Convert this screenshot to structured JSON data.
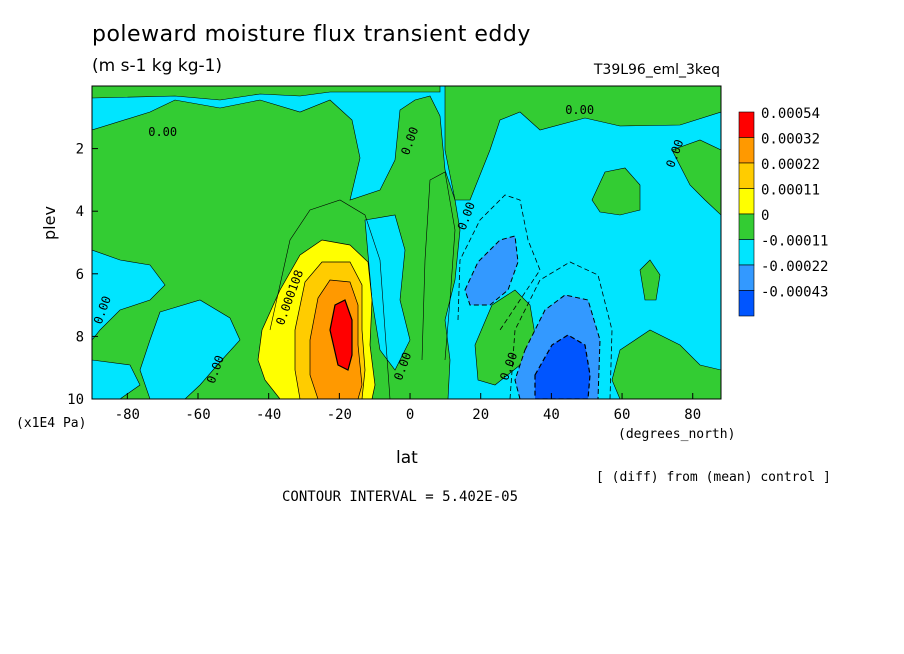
{
  "title": "poleward moisture flux transient eddy",
  "units": "(m s-1 kg kg-1)",
  "run_label": "T39L96_eml_3keq",
  "note": "[ (diff) from (mean) control ]",
  "contour_interval": "CONTOUR INTERVAL = 5.402E-05",
  "chart_data": {
    "type": "heatmap",
    "title": "poleward moisture flux transient eddy",
    "xlabel": "lat",
    "x_units": "(degrees_north)",
    "ylabel": "plev",
    "y_units": "(x1E4 Pa)",
    "xlim": [
      -90,
      88
    ],
    "ylim": [
      10,
      0
    ],
    "x_ticks": [
      "-80",
      "-60",
      "-40",
      "-20",
      "0",
      "20",
      "40",
      "60",
      "80"
    ],
    "y_ticks": [
      "2",
      "4",
      "6",
      "8",
      "10"
    ],
    "legend": {
      "position": "right",
      "levels": [
        {
          "label": "0.00054",
          "color": "#ff0000"
        },
        {
          "label": "0.00032",
          "color": "#ff9900"
        },
        {
          "label": "0.00022",
          "color": "#ffcc00"
        },
        {
          "label": "0.00011",
          "color": "#ffff00"
        },
        {
          "label": "0",
          "color": "#33cc33"
        },
        {
          "label": "-0.00011",
          "color": "#00e5ff"
        },
        {
          "label": "-0.00022",
          "color": "#3399ff"
        },
        {
          "label": "-0.00043",
          "color": "#0055ff"
        }
      ]
    },
    "contour_labels": [
      {
        "text": "0.00",
        "lat": -70,
        "plev": 1.6
      },
      {
        "text": "0.00",
        "lat": 1,
        "plev": 1.8
      },
      {
        "text": "0.00",
        "lat": 48,
        "plev": 0.9
      },
      {
        "text": "0.00",
        "lat": 76,
        "plev": 2.2
      },
      {
        "text": "0.00",
        "lat": 17,
        "plev": 4.2
      },
      {
        "text": "0.00",
        "lat": -86,
        "plev": 7.2
      },
      {
        "text": "0.000108",
        "lat": -33,
        "plev": 6.8
      },
      {
        "text": "0.00",
        "lat": -54,
        "plev": 9.1
      },
      {
        "text": "0.00",
        "lat": -1,
        "plev": 9.0
      },
      {
        "text": "0.00",
        "lat": 29,
        "plev": 9.0
      }
    ],
    "features": [
      {
        "sign": "positive",
        "level_max": "0.00054",
        "lat": -18,
        "plev": 8,
        "desc": "maximum near -20 lat"
      },
      {
        "sign": "negative",
        "level_min": "-0.00043",
        "lat": 42,
        "plev": 9.5,
        "desc": "minimum near 40 lat"
      },
      {
        "sign": "negative",
        "level_min": "-0.00022",
        "lat": 22,
        "plev": 6.5
      }
    ]
  }
}
